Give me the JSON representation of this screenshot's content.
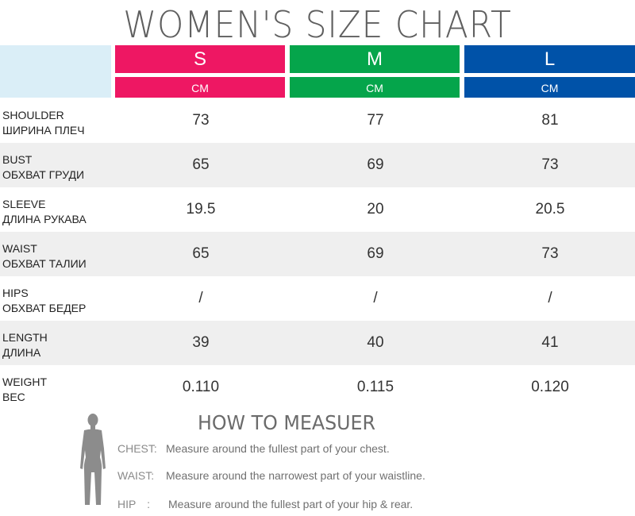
{
  "title": "WOMEN'S SIZE CHART",
  "sizes": [
    {
      "label": "S",
      "unit": "CM",
      "color": "#ee1763"
    },
    {
      "label": "M",
      "unit": "CM",
      "color": "#05a54b"
    },
    {
      "label": "L",
      "unit": "CM",
      "color": "#0052a8"
    }
  ],
  "corner_color": "#daeef7",
  "rows": [
    {
      "en": "SHOULDER",
      "ru": "ШИРИНА ПЛЕЧ",
      "values": [
        "73",
        "77",
        "81"
      ]
    },
    {
      "en": "BUST",
      "ru": "ОБХВАТ ГРУДИ",
      "values": [
        "65",
        "69",
        "73"
      ]
    },
    {
      "en": "SLEEVE",
      "ru": "ДЛИНА РУКАВА",
      "values": [
        "19.5",
        "20",
        "20.5"
      ]
    },
    {
      "en": "WAIST",
      "ru": "ОБХВАТ ТАЛИИ",
      "values": [
        "65",
        "69",
        "73"
      ]
    },
    {
      "en": "HIPS",
      "ru": "ОБХВАТ БЕДЕР",
      "values": [
        "/",
        "/",
        "/"
      ]
    },
    {
      "en": "LENGTH",
      "ru": "ДЛИНА",
      "values": [
        "39",
        "40",
        "41"
      ]
    },
    {
      "en": "WEIGHT",
      "ru": "ВЕС",
      "values": [
        "0.110",
        "0.115",
        "0.120"
      ]
    }
  ],
  "measure": {
    "title": "HOW TO MEASUER",
    "icon": "female-body-silhouette-icon",
    "lines": [
      {
        "key": "CHEST:",
        "desc": "Measure around the fullest part of your chest."
      },
      {
        "key": "WAIST:",
        "desc": "Measure around the narrowest part of your waistline."
      },
      {
        "key": "HIP　:",
        "desc": "Measure around the fullest part of your hip & rear."
      }
    ]
  }
}
